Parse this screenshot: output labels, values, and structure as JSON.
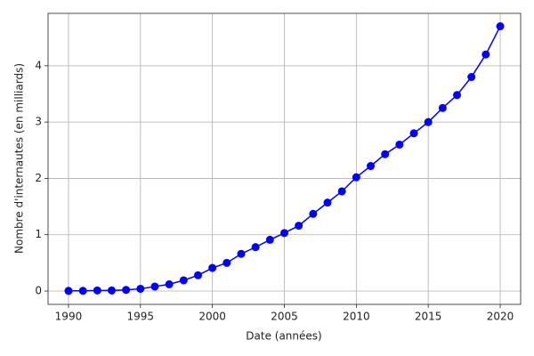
{
  "chart_data": {
    "type": "line",
    "x_label": "Date (années)",
    "y_label": "Nombre d'internautes (en milliards)",
    "x": [
      1990,
      1991,
      1992,
      1993,
      1994,
      1995,
      1996,
      1997,
      1998,
      1999,
      2000,
      2001,
      2002,
      2003,
      2004,
      2005,
      2006,
      2007,
      2008,
      2009,
      2010,
      2011,
      2012,
      2013,
      2014,
      2015,
      2016,
      2017,
      2018,
      2019,
      2020
    ],
    "series": [
      {
        "color": "#0000ff",
        "values": [
          0.003,
          0.004,
          0.01,
          0.01,
          0.02,
          0.04,
          0.08,
          0.12,
          0.19,
          0.28,
          0.41,
          0.5,
          0.66,
          0.78,
          0.91,
          1.03,
          1.16,
          1.37,
          1.57,
          1.77,
          2.02,
          2.22,
          2.43,
          2.6,
          2.8,
          3.0,
          3.25,
          3.48,
          3.8,
          4.2,
          4.7
        ]
      }
    ],
    "xlim": [
      1988.58,
      2021.42
    ],
    "ylim": [
      -0.237,
      4.93
    ],
    "xticks": [
      1990,
      1995,
      2000,
      2005,
      2010,
      2015,
      2020
    ],
    "yticks": [
      0,
      1,
      2,
      3,
      4
    ],
    "grid": true
  }
}
